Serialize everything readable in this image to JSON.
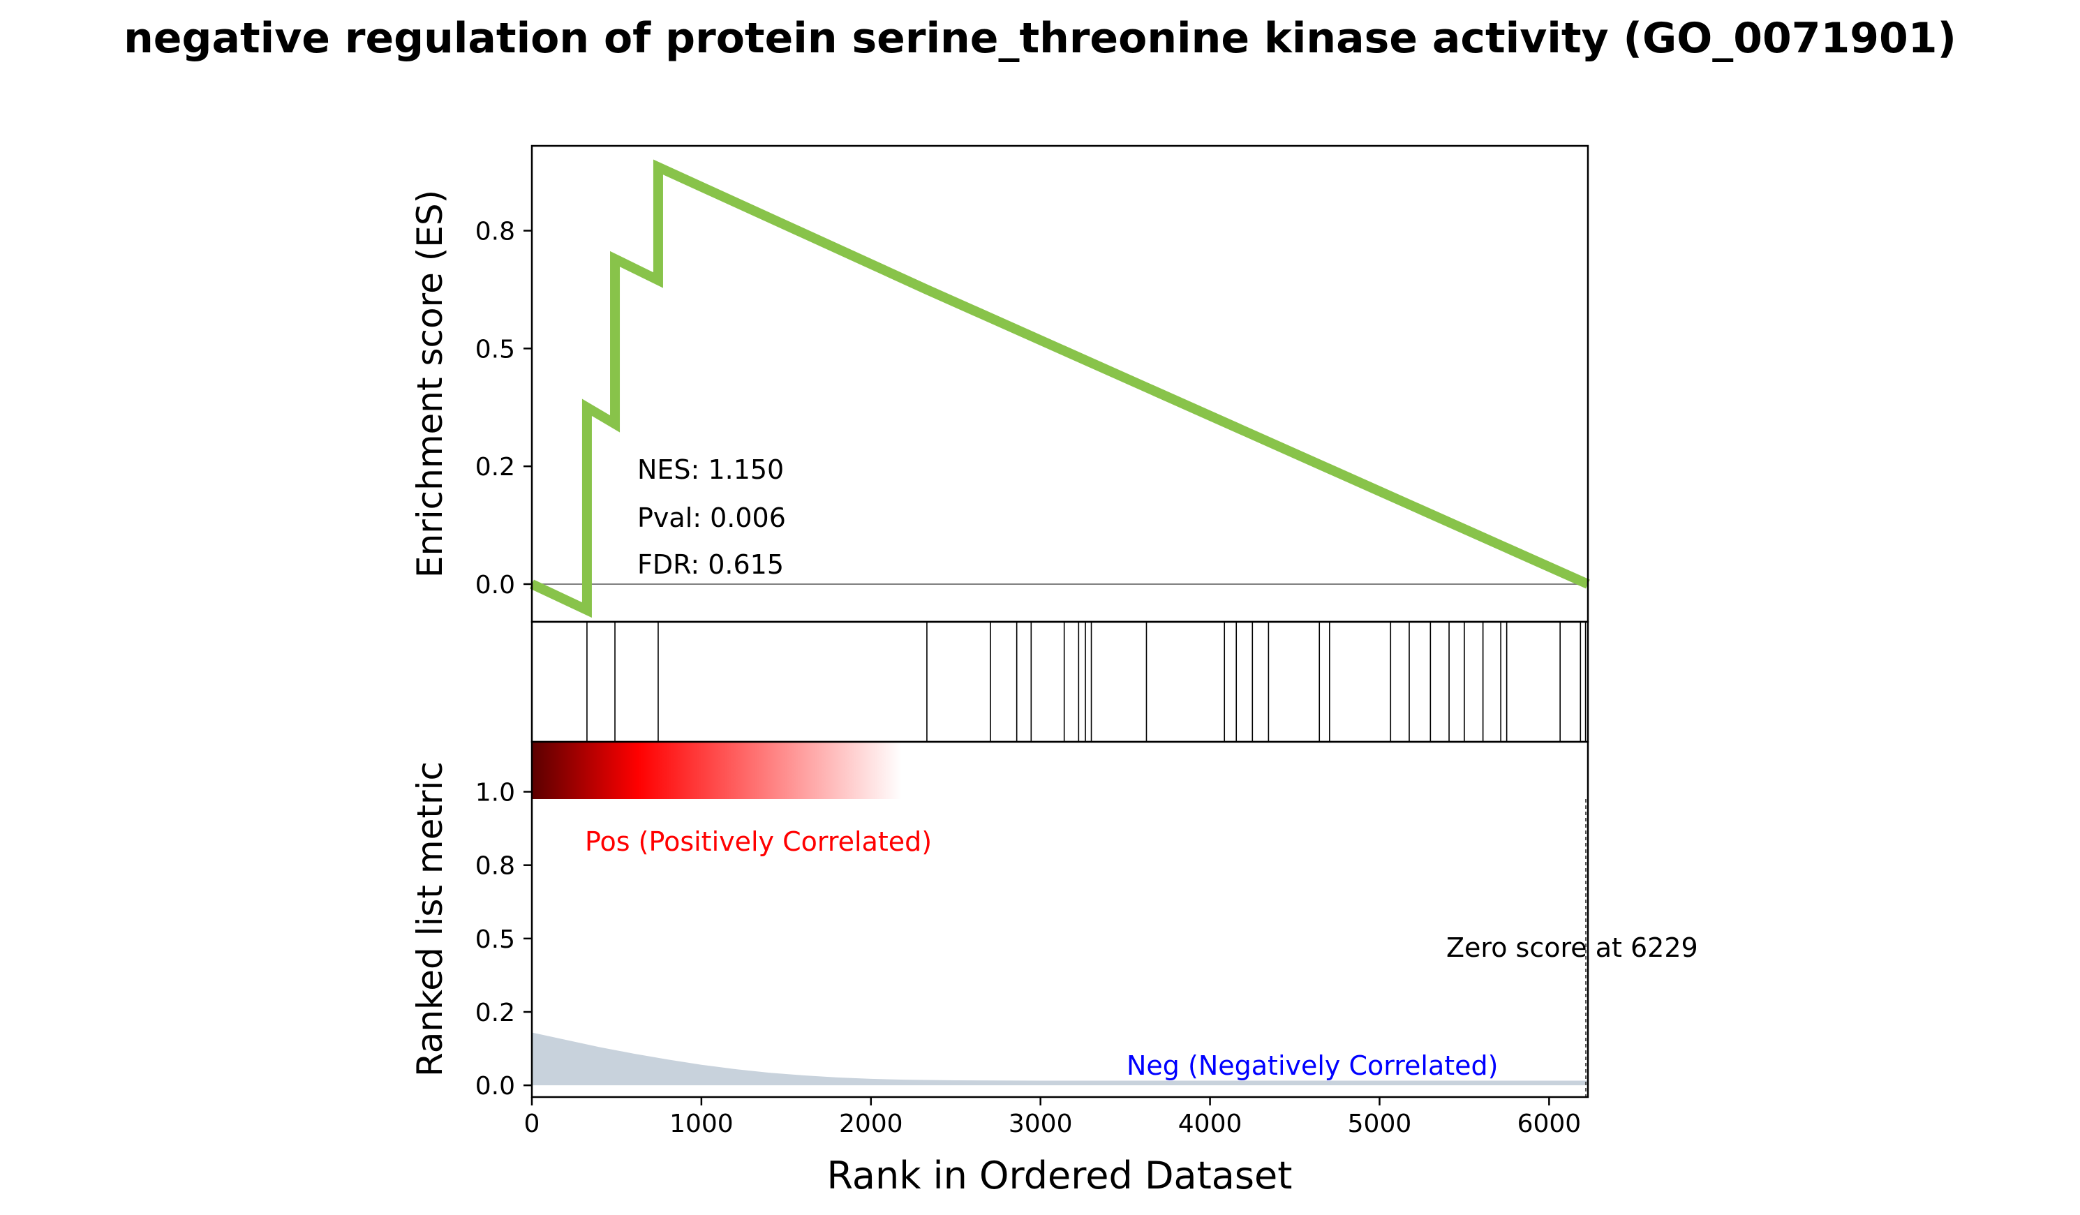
{
  "chart_data": {
    "type": "line",
    "title": "negative regulation of protein serine_threonine kinase activity (GO_0071901)",
    "xlabel": "Rank in Ordered Dataset",
    "xlim": [
      0,
      6229
    ],
    "x_ticks": [
      "0",
      "1000",
      "2000",
      "3000",
      "4000",
      "5000",
      "6000"
    ],
    "x_tick_values": [
      0,
      1000,
      2000,
      3000,
      4000,
      5000,
      6000
    ],
    "es_panel": {
      "ylabel": "Enrichment score (ES)",
      "ylim": [
        -0.08,
        0.93
      ],
      "y_ticks": [
        "0.0",
        "0.2",
        "0.5",
        "0.8"
      ],
      "y_tick_values": [
        0.0,
        0.25,
        0.5,
        0.75
      ],
      "zero_line": true,
      "line_color": "#88c34a",
      "x": [
        0,
        325,
        325,
        490,
        490,
        745,
        745,
        2330,
        6229
      ],
      "y": [
        0.0,
        -0.055,
        0.375,
        0.34,
        0.69,
        0.645,
        0.885,
        0.625,
        0.0
      ],
      "stats": {
        "nes": "NES: 1.150",
        "pval": "Pval: 0.006",
        "fdr": "FDR: 0.615"
      }
    },
    "hits": [
      325,
      490,
      745,
      2330,
      2705,
      2860,
      2945,
      3140,
      3225,
      3265,
      3300,
      3625,
      4085,
      4155,
      4250,
      4345,
      4645,
      4705,
      5065,
      5175,
      5300,
      5410,
      5500,
      5610,
      5715,
      5750,
      6065,
      6185,
      6215
    ],
    "heatmap": {
      "colormap": "seismic",
      "colors": [
        "#5c0000",
        "#ff0000",
        "#ffffff"
      ]
    },
    "rank_panel": {
      "ylabel": "Ranked list metric",
      "ylim": [
        -0.04,
        1.17
      ],
      "y_ticks": [
        "0.0",
        "0.2",
        "0.5",
        "0.8",
        "1.0"
      ],
      "y_tick_values": [
        0.0,
        0.25,
        0.5,
        0.75,
        1.0
      ],
      "fill_color": "#c8d2dc",
      "x": [
        0,
        200,
        400,
        600,
        800,
        1000,
        1200,
        1400,
        1600,
        1800,
        2000,
        2200,
        2500,
        3000,
        6229
      ],
      "y": [
        0.18,
        0.155,
        0.13,
        0.108,
        0.088,
        0.07,
        0.055,
        0.043,
        0.034,
        0.027,
        0.022,
        0.019,
        0.017,
        0.016,
        0.016
      ],
      "pos_label": "Pos (Positively Correlated)",
      "neg_label": "Neg (Negatively Correlated)",
      "pos_color": "#ff0000",
      "neg_color": "#0000ff",
      "zero_score_rank": 6229,
      "zero_score_label": "Zero score at 6229"
    }
  }
}
